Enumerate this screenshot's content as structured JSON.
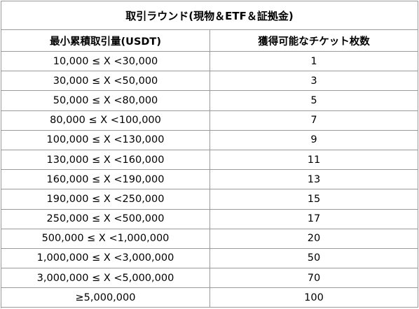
{
  "table": {
    "title": "取引ラウンド(現物＆ETF＆証拠金)",
    "headers": [
      "最小累積取引量(USDT)",
      "獲得可能なチケット枚数"
    ],
    "rows": [
      [
        "10,000 ≤ X <30,000",
        "1"
      ],
      [
        "30,000 ≤ X <50,000",
        "3"
      ],
      [
        "50,000 ≤ X <80,000",
        "5"
      ],
      [
        "80,000 ≤ X <100,000",
        "7"
      ],
      [
        "100,000 ≤ X <130,000",
        "9"
      ],
      [
        "130,000 ≤ X <160,000",
        "11"
      ],
      [
        "160,000 ≤ X <190,000",
        "13"
      ],
      [
        "190,000 ≤ X <250,000",
        "15"
      ],
      [
        "250,000 ≤ X <500,000",
        "17"
      ],
      [
        "500,000 ≤ X <1,000,000",
        "20"
      ],
      [
        "1,000,000 ≤ X <3,000,000",
        "50"
      ],
      [
        "3,000,000 ≤ X <5,000,000",
        "70"
      ],
      [
        "≥5,000,000",
        "100"
      ]
    ]
  },
  "colors": {
    "border": "#9a9a9a",
    "text": "#000000",
    "background": "#ffffff"
  }
}
